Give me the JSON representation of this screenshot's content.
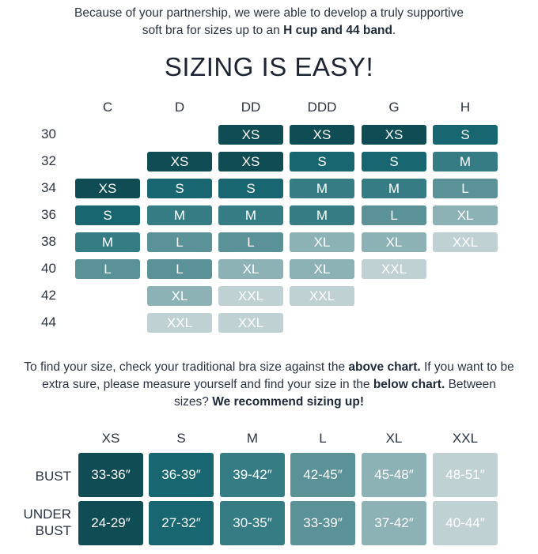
{
  "intro": {
    "line1": "Because of your partnership, we were able to develop a truly supportive",
    "line2_pre": "soft bra for sizes up to an ",
    "line2_bold": "H cup and 44 band",
    "line2_post": "."
  },
  "title": "SIZING IS EASY!",
  "size_chart": {
    "cups": [
      "C",
      "D",
      "DD",
      "DDD",
      "G",
      "H"
    ],
    "bands": [
      "30",
      "32",
      "34",
      "36",
      "38",
      "40",
      "42",
      "44"
    ],
    "rows": [
      [
        "",
        "",
        "XS",
        "XS",
        "XS",
        "S"
      ],
      [
        "",
        "XS",
        "XS",
        "S",
        "S",
        "M"
      ],
      [
        "XS",
        "S",
        "S",
        "M",
        "M",
        "L"
      ],
      [
        "S",
        "M",
        "M",
        "M",
        "L",
        "XL"
      ],
      [
        "M",
        "L",
        "L",
        "XL",
        "XL",
        "XXL"
      ],
      [
        "L",
        "L",
        "XL",
        "XL",
        "XXL",
        ""
      ],
      [
        "",
        "XL",
        "XXL",
        "XXL",
        "",
        ""
      ],
      [
        "",
        "XXL",
        "XXL",
        "",
        "",
        ""
      ]
    ],
    "size_colors": {
      "XS": "#0f4c53",
      "S": "#186670",
      "M": "#367c84",
      "L": "#5a9298",
      "XL": "#8db2b6",
      "XXL": "#bfd1d3"
    }
  },
  "instructions": {
    "p1": "To find your size, check your traditional bra size against the ",
    "b1": "above chart.",
    "p2": " If you want to be extra sure, please measure yourself and find your size in the ",
    "b2": "below chart.",
    "p3": " Between sizes? ",
    "b3": "We recommend sizing up!"
  },
  "measure_chart": {
    "sizes": [
      "XS",
      "S",
      "M",
      "L",
      "XL",
      "XXL"
    ],
    "bust_label": "BUST",
    "under_bust_label_1": "UNDER",
    "under_bust_label_2": "BUST",
    "bust": [
      "33-36″",
      "36-39″",
      "39-42″",
      "42-45″",
      "45-48″",
      "48-51″"
    ],
    "under_bust": [
      "24-29″",
      "27-32″",
      "30-35″",
      "33-39″",
      "37-42″",
      "40-44″"
    ]
  }
}
